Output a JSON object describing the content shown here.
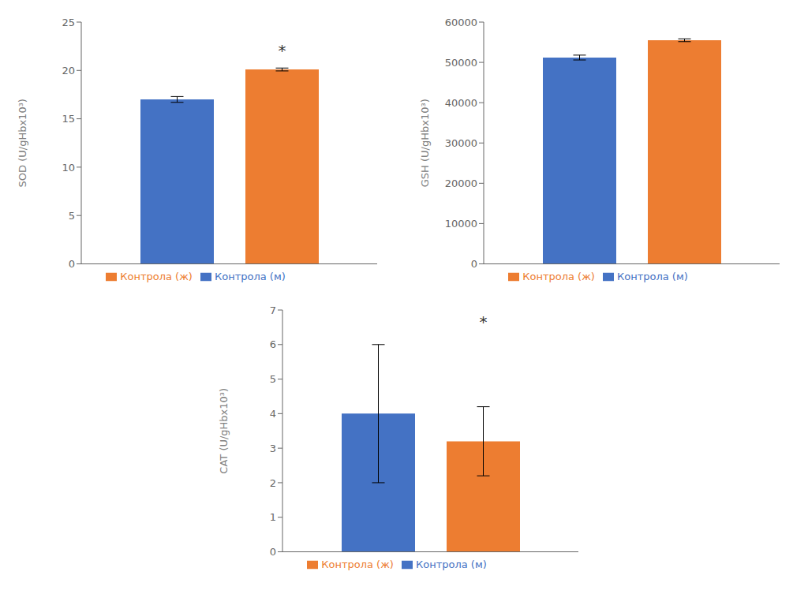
{
  "chart_data": [
    {
      "type": "bar",
      "ylabel": "SOD (U/gHbx10³)",
      "categories": [
        null
      ],
      "tick_labels": "y",
      "series": [
        {
          "name": "Контрола (м)",
          "color": "#4472C4",
          "values": [
            17.0
          ],
          "errors": [
            0.3
          ]
        },
        {
          "name": "Контрола (ж)",
          "color": "#ED7D31",
          "values": [
            20.1
          ],
          "errors": [
            0.15
          ]
        }
      ],
      "ylim": [
        0,
        25
      ],
      "yticks": [
        0,
        5,
        10,
        15,
        20,
        25
      ],
      "legend": "bottom",
      "annotations": [
        {
          "text": "*",
          "y": 21.5
        }
      ]
    },
    {
      "type": "bar",
      "ylabel": "GSH (U/gHbx10³)",
      "categories": [
        null
      ],
      "tick_labels": "y",
      "series": [
        {
          "name": "Контрола (м)",
          "color": "#4472C4",
          "values": [
            51200
          ],
          "errors": [
            600
          ]
        },
        {
          "name": "Контрола (ж)",
          "color": "#ED7D31",
          "values": [
            55500
          ],
          "errors": [
            350
          ]
        }
      ],
      "ylim": [
        0,
        60000
      ],
      "yticks": [
        0,
        10000,
        20000,
        30000,
        40000,
        50000,
        60000
      ],
      "legend": "bottom"
    },
    {
      "type": "bar",
      "ylabel": "CAT (U/gHbx10³)",
      "categories": [
        null
      ],
      "tick_labels": "y",
      "series": [
        {
          "name": "Контрола (м)",
          "color": "#4472C4",
          "values": [
            4.0
          ],
          "errors": [
            2.0
          ]
        },
        {
          "name": "Контрола (ж)",
          "color": "#ED7D31",
          "values": [
            3.2
          ],
          "errors": [
            1.0
          ]
        }
      ],
      "ylim": [
        0,
        7
      ],
      "yticks": [
        0,
        1,
        2,
        3,
        4,
        5,
        6,
        7
      ],
      "legend": "bottom",
      "annotations": [
        {
          "text": "*",
          "y": 6.5
        }
      ]
    }
  ]
}
